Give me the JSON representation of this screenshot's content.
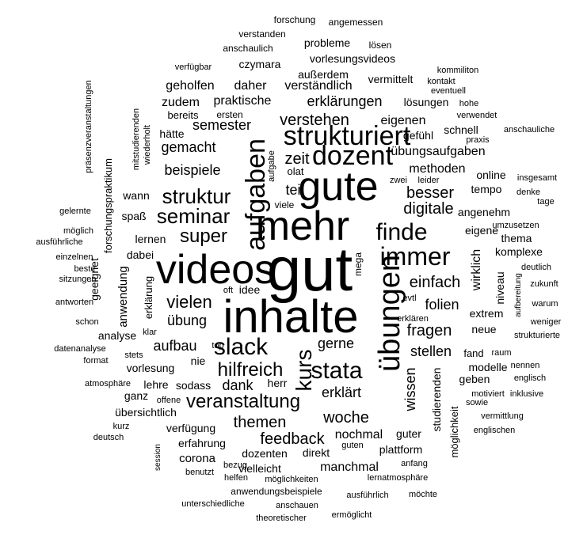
{
  "word_cloud": {
    "words": [
      {
        "text": "gut",
        "weight": 10
      },
      {
        "text": "mehr",
        "weight": 6.5
      },
      {
        "text": "inhalte",
        "weight": 7.5
      },
      {
        "text": "gute",
        "weight": 6.5
      },
      {
        "text": "videos",
        "weight": 6.5
      },
      {
        "text": "übungen",
        "weight": 5
      },
      {
        "text": "strukturiert",
        "weight": 4
      },
      {
        "text": "dozent",
        "weight": 4
      },
      {
        "text": "aufgaben",
        "weight": 4
      },
      {
        "text": "immer",
        "weight": 4
      },
      {
        "text": "finde",
        "weight": 4
      },
      {
        "text": "slack",
        "weight": 4
      },
      {
        "text": "kurs",
        "weight": 3.5
      },
      {
        "text": "stata",
        "weight": 3.5
      },
      {
        "text": "struktur",
        "weight": 3
      },
      {
        "text": "seminar",
        "weight": 3
      },
      {
        "text": "veranstaltung",
        "weight": 3
      },
      {
        "text": "super",
        "weight": 2.8
      },
      {
        "text": "hilfreich",
        "weight": 2.8
      },
      {
        "text": "einfach",
        "weight": 2.5
      },
      {
        "text": "vielen",
        "weight": 2.5
      },
      {
        "text": "woche",
        "weight": 2.5
      },
      {
        "text": "verstehen",
        "weight": 2.3
      },
      {
        "text": "zeit",
        "weight": 2.3
      },
      {
        "text": "teil",
        "weight": 2.2
      },
      {
        "text": "besser",
        "weight": 2.2
      },
      {
        "text": "digitale",
        "weight": 2.2
      },
      {
        "text": "semester",
        "weight": 2.2
      },
      {
        "text": "gemacht",
        "weight": 2.2
      },
      {
        "text": "beispiele",
        "weight": 2.2
      },
      {
        "text": "erklärungen",
        "weight": 2.2
      },
      {
        "text": "praktische",
        "weight": 2
      },
      {
        "text": "themen",
        "weight": 2.2
      },
      {
        "text": "feedback",
        "weight": 2.2
      },
      {
        "text": "fragen",
        "weight": 2.2
      },
      {
        "text": "folien",
        "weight": 2.2
      },
      {
        "text": "stellen",
        "weight": 2
      },
      {
        "text": "gerne",
        "weight": 2
      },
      {
        "text": "übung",
        "weight": 2
      },
      {
        "text": "aufbau",
        "weight": 2
      },
      {
        "text": "dank",
        "weight": 2
      },
      {
        "text": "erklärt",
        "weight": 2
      },
      {
        "text": "nochmal",
        "weight": 1.8
      },
      {
        "text": "wissen",
        "weight": 2
      },
      {
        "text": "wirklich",
        "weight": 2
      },
      {
        "text": "eigenen",
        "weight": 1.8
      },
      {
        "text": "übungsaufgaben",
        "weight": 1.8
      },
      {
        "text": "methoden",
        "weight": 1.8
      },
      {
        "text": "verständlich",
        "weight": 1.8
      },
      {
        "text": "geholfen",
        "weight": 1.7
      },
      {
        "text": "daher",
        "weight": 1.7
      },
      {
        "text": "zudem",
        "weight": 1.6
      },
      {
        "text": "lösungen",
        "weight": 1.6
      },
      {
        "text": "vermittelt",
        "weight": 1.5
      },
      {
        "text": "außerdem",
        "weight": 1.5
      },
      {
        "text": "vorlesungsvideos",
        "weight": 1.6
      },
      {
        "text": "probleme",
        "weight": 1.6
      },
      {
        "text": "czymara",
        "weight": 1.6
      },
      {
        "text": "gefühl",
        "weight": 1.6
      },
      {
        "text": "schnell",
        "weight": 1.6
      },
      {
        "text": "bereits",
        "weight": 1.4
      },
      {
        "text": "ersten",
        "weight": 1.2
      },
      {
        "text": "hätte",
        "weight": 1.5
      },
      {
        "text": "wann",
        "weight": 1.5
      },
      {
        "text": "spaß",
        "weight": 1.5
      },
      {
        "text": "lernen",
        "weight": 1.6
      },
      {
        "text": "dabei",
        "weight": 1.5
      },
      {
        "text": "anwendung",
        "weight": 1.7
      },
      {
        "text": "geeignet",
        "weight": 1.5
      },
      {
        "text": "erklärung",
        "weight": 1.4
      },
      {
        "text": "analyse",
        "weight": 1.6
      },
      {
        "text": "vorlesung",
        "weight": 1.6
      },
      {
        "text": "nie",
        "weight": 1.6
      },
      {
        "text": "sodass",
        "weight": 1.6
      },
      {
        "text": "herr",
        "weight": 1.5
      },
      {
        "text": "lehre",
        "weight": 1.5
      },
      {
        "text": "ganz",
        "weight": 1.5
      },
      {
        "text": "übersichtlich",
        "weight": 1.5
      },
      {
        "text": "verfügung",
        "weight": 1.5
      },
      {
        "text": "erfahrung",
        "weight": 1.5
      },
      {
        "text": "corona",
        "weight": 1.6
      },
      {
        "text": "dozenten",
        "weight": 1.6
      },
      {
        "text": "vielleicht",
        "weight": 1.6
      },
      {
        "text": "direkt",
        "weight": 1.5
      },
      {
        "text": "manchmal",
        "weight": 1.7
      },
      {
        "text": "plattform",
        "weight": 1.6
      },
      {
        "text": "guter",
        "weight": 1.5
      },
      {
        "text": "studierenden",
        "weight": 1.6
      },
      {
        "text": "möglichkeit",
        "weight": 1.4
      },
      {
        "text": "geben",
        "weight": 1.6
      },
      {
        "text": "modelle",
        "weight": 1.6
      },
      {
        "text": "fand",
        "weight": 1.5
      },
      {
        "text": "neue",
        "weight": 1.6
      },
      {
        "text": "extrem",
        "weight": 1.6
      },
      {
        "text": "eigene",
        "weight": 1.6
      },
      {
        "text": "angenehm",
        "weight": 1.5
      },
      {
        "text": "tempo",
        "weight": 1.5
      },
      {
        "text": "online",
        "weight": 1.5
      },
      {
        "text": "komplexe",
        "weight": 1.5
      },
      {
        "text": "niveau",
        "weight": 1.5
      },
      {
        "text": "thema",
        "weight": 1.5
      },
      {
        "text": "idee",
        "weight": 1.4
      },
      {
        "text": "mega",
        "weight": 1.3
      },
      {
        "text": "viele",
        "weight": 1.3
      },
      {
        "text": "olat",
        "weight": 1.3
      },
      {
        "text": "forschungspraktikum",
        "weight": 1.3
      },
      {
        "text": "mitstudierenden",
        "weight": 1.1
      },
      {
        "text": "wiederholt",
        "weight": 1.1
      },
      {
        "text": "aufgabe",
        "weight": 1.1
      },
      {
        "text": "präsenzveranstaltungen",
        "weight": 1.1
      },
      {
        "text": "forschung",
        "weight": 1.2
      },
      {
        "text": "angemessen",
        "weight": 1.2
      },
      {
        "text": "verstanden",
        "weight": 1.2
      },
      {
        "text": "lösen",
        "weight": 1.2
      },
      {
        "text": "anschaulich",
        "weight": 1.2
      },
      {
        "text": "verfügbar",
        "weight": 1.1
      },
      {
        "text": "kommiliton",
        "weight": 1.1
      },
      {
        "text": "kontakt",
        "weight": 1.1
      },
      {
        "text": "eventuell",
        "weight": 1.1
      },
      {
        "text": "hohe",
        "weight": 1.1
      },
      {
        "text": "verwendet",
        "weight": 1.1
      },
      {
        "text": "praxis",
        "weight": 1.1
      },
      {
        "text": "anschauliche",
        "weight": 1.1
      },
      {
        "text": "zwei",
        "weight": 1
      },
      {
        "text": "leider",
        "weight": 1
      },
      {
        "text": "insgesamt",
        "weight": 1.1
      },
      {
        "text": "denke",
        "weight": 1.1
      },
      {
        "text": "tage",
        "weight": 1.1
      },
      {
        "text": "umzusetzen",
        "weight": 1.1
      },
      {
        "text": "deutlich",
        "weight": 1.1
      },
      {
        "text": "aufbereitung",
        "weight": 1
      },
      {
        "text": "zukunft",
        "weight": 1.1
      },
      {
        "text": "warum",
        "weight": 1.1
      },
      {
        "text": "weniger",
        "weight": 1.1
      },
      {
        "text": "strukturierte",
        "weight": 1.1
      },
      {
        "text": "nennen",
        "weight": 1.1
      },
      {
        "text": "englisch",
        "weight": 1.1
      },
      {
        "text": "motiviert",
        "weight": 1.1
      },
      {
        "text": "inklusive",
        "weight": 1.1
      },
      {
        "text": "sowie",
        "weight": 1.1
      },
      {
        "text": "vermittlung",
        "weight": 1.1
      },
      {
        "text": "englischen",
        "weight": 1.1
      },
      {
        "text": "gelernte",
        "weight": 1.1
      },
      {
        "text": "möglich",
        "weight": 1.1
      },
      {
        "text": "ausführliche",
        "weight": 1.1
      },
      {
        "text": "einzelnen",
        "weight": 1.1
      },
      {
        "text": "beste",
        "weight": 1.1
      },
      {
        "text": "sitzungen",
        "weight": 1.1
      },
      {
        "text": "antworten",
        "weight": 1.1
      },
      {
        "text": "schon",
        "weight": 1.1
      },
      {
        "text": "datenanalyse",
        "weight": 1.1
      },
      {
        "text": "format",
        "weight": 1.1
      },
      {
        "text": "atmosphäre",
        "weight": 1.1
      },
      {
        "text": "deutsch",
        "weight": 1.1
      },
      {
        "text": "kurz",
        "weight": 1.1
      },
      {
        "text": "offene",
        "weight": 1
      },
      {
        "text": "session",
        "weight": 1
      },
      {
        "text": "benutzt",
        "weight": 1
      },
      {
        "text": "bezug",
        "weight": 1
      },
      {
        "text": "helfen",
        "weight": 1.1
      },
      {
        "text": "möglichkeiten",
        "weight": 1.1
      },
      {
        "text": "anwendungsbeispiele",
        "weight": 1.1
      },
      {
        "text": "unterschiedliche",
        "weight": 1.1
      },
      {
        "text": "anschauen",
        "weight": 1.1
      },
      {
        "text": "theoretischer",
        "weight": 1.1
      },
      {
        "text": "ermöglicht",
        "weight": 1.1
      },
      {
        "text": "ausführlich",
        "weight": 1.1
      },
      {
        "text": "möchte",
        "weight": 1.1
      },
      {
        "text": "lernatmosphäre",
        "weight": 1.1
      },
      {
        "text": "guten",
        "weight": 1
      },
      {
        "text": "anfang",
        "weight": 1
      },
      {
        "text": "erklären",
        "weight": 1
      },
      {
        "text": "evtl",
        "weight": 1
      },
      {
        "text": "raum",
        "weight": 1
      },
      {
        "text": "stets",
        "weight": 1
      },
      {
        "text": "klar",
        "weight": 1
      },
      {
        "text": "top",
        "weight": 1
      },
      {
        "text": "oft",
        "weight": 1
      }
    ]
  }
}
